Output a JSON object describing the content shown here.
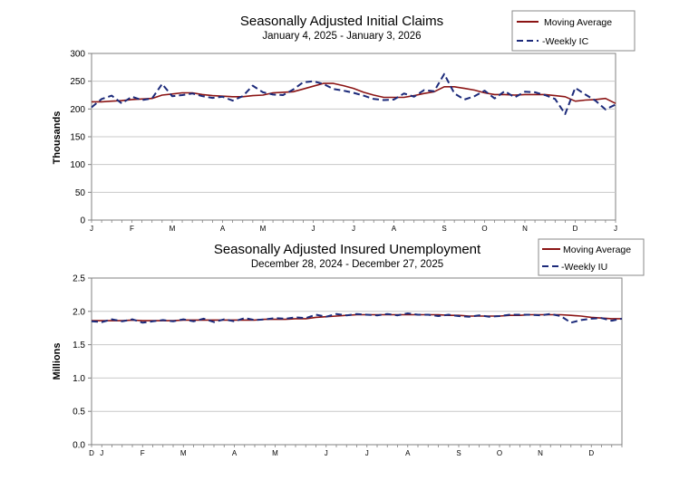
{
  "colors": {
    "moving_average": "#8b1414",
    "weekly": "#1c2a7a",
    "grid": "#c8c8c8",
    "axis": "#808080"
  },
  "chart_data": [
    {
      "type": "line",
      "title": "Seasonally Adjusted Initial Claims",
      "subtitle": "January 4, 2025 - January 3, 2026",
      "ylabel": "Thousands",
      "ylim": [
        0,
        300
      ],
      "yticks": [
        "0",
        "50",
        "100",
        "150",
        "200",
        "250",
        "300"
      ],
      "ytick_values": [
        0,
        50,
        100,
        150,
        200,
        250,
        300
      ],
      "month_labels": [
        "J",
        "F",
        "M",
        "A",
        "M",
        "J",
        "J",
        "A",
        "S",
        "O",
        "N",
        "D",
        "J"
      ],
      "month_positions": [
        0,
        4,
        8,
        13,
        17,
        22,
        26,
        30,
        35,
        39,
        43,
        48,
        52
      ],
      "legend": [
        "Moving Average",
        "-Weekly IC"
      ],
      "series": [
        {
          "name": "Moving Average",
          "style": "solid",
          "values": [
            213,
            213,
            214,
            215,
            217,
            218,
            219,
            225,
            227,
            229,
            229,
            226,
            224,
            223,
            222,
            222,
            224,
            225,
            229,
            230,
            231,
            236,
            241,
            246,
            246,
            242,
            237,
            230,
            225,
            221,
            221,
            221,
            224,
            228,
            231,
            240,
            240,
            237,
            234,
            229,
            226,
            226,
            225,
            226,
            226,
            226,
            224,
            222,
            214,
            216,
            217,
            219,
            210
          ]
        },
        {
          "name": "Weekly IC",
          "style": "dashed",
          "values": [
            203,
            218,
            224,
            210,
            222,
            216,
            219,
            245,
            223,
            225,
            228,
            223,
            220,
            222,
            215,
            223,
            242,
            230,
            226,
            225,
            235,
            248,
            250,
            245,
            236,
            233,
            229,
            224,
            218,
            216,
            217,
            228,
            222,
            234,
            232,
            263,
            228,
            217,
            223,
            233,
            219,
            232,
            221,
            231,
            230,
            225,
            218,
            191,
            238,
            226,
            215,
            199,
            208
          ]
        }
      ]
    },
    {
      "type": "line",
      "title": "Seasonally Adjusted Insured Unemployment",
      "subtitle": "December 28, 2024 - December 27, 2025",
      "ylabel": "Millions",
      "ylim": [
        0,
        2.5
      ],
      "yticks": [
        "0.0",
        "0.5",
        "1.0",
        "1.5",
        "2.0",
        "2.5"
      ],
      "ytick_values": [
        0,
        0.5,
        1.0,
        1.5,
        2.0,
        2.5
      ],
      "month_labels": [
        "D",
        "J",
        "F",
        "M",
        "A",
        "M",
        "J",
        "J",
        "A",
        "S",
        "O",
        "N",
        "D"
      ],
      "month_positions": [
        0,
        1,
        5,
        9,
        14,
        18,
        23,
        27,
        31,
        36,
        40,
        44,
        49
      ],
      "legend": [
        "Moving Average",
        "-Weekly IU"
      ],
      "series": [
        {
          "name": "Moving Average",
          "style": "solid",
          "values": [
            1.86,
            1.86,
            1.86,
            1.86,
            1.87,
            1.86,
            1.86,
            1.86,
            1.86,
            1.87,
            1.87,
            1.87,
            1.87,
            1.87,
            1.87,
            1.87,
            1.87,
            1.88,
            1.88,
            1.88,
            1.89,
            1.89,
            1.91,
            1.92,
            1.93,
            1.94,
            1.95,
            1.95,
            1.95,
            1.95,
            1.95,
            1.95,
            1.95,
            1.95,
            1.95,
            1.94,
            1.94,
            1.93,
            1.93,
            1.93,
            1.93,
            1.94,
            1.94,
            1.95,
            1.95,
            1.95,
            1.95,
            1.94,
            1.93,
            1.91,
            1.9,
            1.89,
            1.89
          ]
        },
        {
          "name": "Weekly IU",
          "style": "dashed",
          "values": [
            1.85,
            1.84,
            1.88,
            1.85,
            1.88,
            1.83,
            1.85,
            1.87,
            1.85,
            1.88,
            1.85,
            1.89,
            1.84,
            1.88,
            1.85,
            1.9,
            1.87,
            1.88,
            1.9,
            1.89,
            1.91,
            1.9,
            1.95,
            1.92,
            1.96,
            1.94,
            1.96,
            1.95,
            1.94,
            1.96,
            1.94,
            1.97,
            1.95,
            1.95,
            1.93,
            1.95,
            1.93,
            1.92,
            1.94,
            1.92,
            1.93,
            1.95,
            1.95,
            1.95,
            1.94,
            1.96,
            1.93,
            1.83,
            1.87,
            1.89,
            1.9,
            1.86,
            1.89
          ]
        }
      ]
    }
  ]
}
